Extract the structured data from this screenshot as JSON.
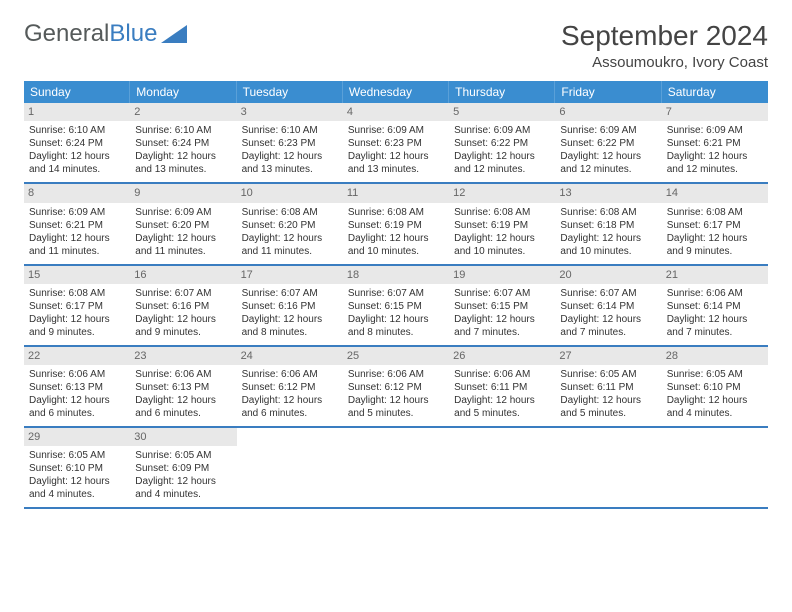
{
  "logo": {
    "text1": "General",
    "text2": "Blue"
  },
  "title": "September 2024",
  "location": "Assoumoukro, Ivory Coast",
  "colors": {
    "header_blue": "#3a8dd0",
    "accent_blue": "#3a7dc0",
    "daynum_bg": "#e8e8e8",
    "text_gray": "#555a5a"
  },
  "weekday_labels": [
    "Sunday",
    "Monday",
    "Tuesday",
    "Wednesday",
    "Thursday",
    "Friday",
    "Saturday"
  ],
  "weeks": [
    [
      {
        "n": "1",
        "sunrise": "6:10 AM",
        "sunset": "6:24 PM",
        "dl_h": "12",
        "dl_m": "14"
      },
      {
        "n": "2",
        "sunrise": "6:10 AM",
        "sunset": "6:24 PM",
        "dl_h": "12",
        "dl_m": "13"
      },
      {
        "n": "3",
        "sunrise": "6:10 AM",
        "sunset": "6:23 PM",
        "dl_h": "12",
        "dl_m": "13"
      },
      {
        "n": "4",
        "sunrise": "6:09 AM",
        "sunset": "6:23 PM",
        "dl_h": "12",
        "dl_m": "13"
      },
      {
        "n": "5",
        "sunrise": "6:09 AM",
        "sunset": "6:22 PM",
        "dl_h": "12",
        "dl_m": "12"
      },
      {
        "n": "6",
        "sunrise": "6:09 AM",
        "sunset": "6:22 PM",
        "dl_h": "12",
        "dl_m": "12"
      },
      {
        "n": "7",
        "sunrise": "6:09 AM",
        "sunset": "6:21 PM",
        "dl_h": "12",
        "dl_m": "12"
      }
    ],
    [
      {
        "n": "8",
        "sunrise": "6:09 AM",
        "sunset": "6:21 PM",
        "dl_h": "12",
        "dl_m": "11"
      },
      {
        "n": "9",
        "sunrise": "6:09 AM",
        "sunset": "6:20 PM",
        "dl_h": "12",
        "dl_m": "11"
      },
      {
        "n": "10",
        "sunrise": "6:08 AM",
        "sunset": "6:20 PM",
        "dl_h": "12",
        "dl_m": "11"
      },
      {
        "n": "11",
        "sunrise": "6:08 AM",
        "sunset": "6:19 PM",
        "dl_h": "12",
        "dl_m": "10"
      },
      {
        "n": "12",
        "sunrise": "6:08 AM",
        "sunset": "6:19 PM",
        "dl_h": "12",
        "dl_m": "10"
      },
      {
        "n": "13",
        "sunrise": "6:08 AM",
        "sunset": "6:18 PM",
        "dl_h": "12",
        "dl_m": "10"
      },
      {
        "n": "14",
        "sunrise": "6:08 AM",
        "sunset": "6:17 PM",
        "dl_h": "12",
        "dl_m": "9"
      }
    ],
    [
      {
        "n": "15",
        "sunrise": "6:08 AM",
        "sunset": "6:17 PM",
        "dl_h": "12",
        "dl_m": "9"
      },
      {
        "n": "16",
        "sunrise": "6:07 AM",
        "sunset": "6:16 PM",
        "dl_h": "12",
        "dl_m": "9"
      },
      {
        "n": "17",
        "sunrise": "6:07 AM",
        "sunset": "6:16 PM",
        "dl_h": "12",
        "dl_m": "8"
      },
      {
        "n": "18",
        "sunrise": "6:07 AM",
        "sunset": "6:15 PM",
        "dl_h": "12",
        "dl_m": "8"
      },
      {
        "n": "19",
        "sunrise": "6:07 AM",
        "sunset": "6:15 PM",
        "dl_h": "12",
        "dl_m": "7"
      },
      {
        "n": "20",
        "sunrise": "6:07 AM",
        "sunset": "6:14 PM",
        "dl_h": "12",
        "dl_m": "7"
      },
      {
        "n": "21",
        "sunrise": "6:06 AM",
        "sunset": "6:14 PM",
        "dl_h": "12",
        "dl_m": "7"
      }
    ],
    [
      {
        "n": "22",
        "sunrise": "6:06 AM",
        "sunset": "6:13 PM",
        "dl_h": "12",
        "dl_m": "6"
      },
      {
        "n": "23",
        "sunrise": "6:06 AM",
        "sunset": "6:13 PM",
        "dl_h": "12",
        "dl_m": "6"
      },
      {
        "n": "24",
        "sunrise": "6:06 AM",
        "sunset": "6:12 PM",
        "dl_h": "12",
        "dl_m": "6"
      },
      {
        "n": "25",
        "sunrise": "6:06 AM",
        "sunset": "6:12 PM",
        "dl_h": "12",
        "dl_m": "5"
      },
      {
        "n": "26",
        "sunrise": "6:06 AM",
        "sunset": "6:11 PM",
        "dl_h": "12",
        "dl_m": "5"
      },
      {
        "n": "27",
        "sunrise": "6:05 AM",
        "sunset": "6:11 PM",
        "dl_h": "12",
        "dl_m": "5"
      },
      {
        "n": "28",
        "sunrise": "6:05 AM",
        "sunset": "6:10 PM",
        "dl_h": "12",
        "dl_m": "4"
      }
    ],
    [
      {
        "n": "29",
        "sunrise": "6:05 AM",
        "sunset": "6:10 PM",
        "dl_h": "12",
        "dl_m": "4"
      },
      {
        "n": "30",
        "sunrise": "6:05 AM",
        "sunset": "6:09 PM",
        "dl_h": "12",
        "dl_m": "4"
      },
      null,
      null,
      null,
      null,
      null
    ]
  ]
}
